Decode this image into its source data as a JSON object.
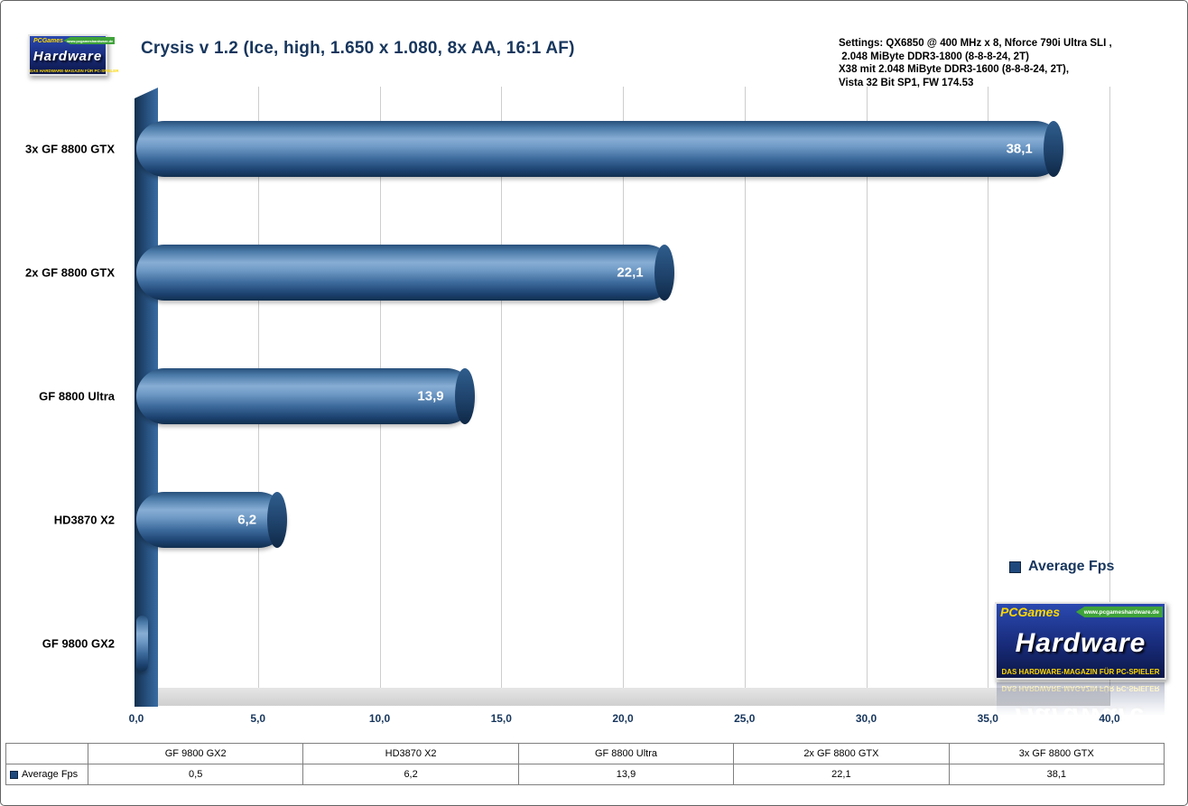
{
  "page": {
    "title": "Crysis v 1.2 (Ice, high, 1.650 x 1.080, 8x AA, 16:1 AF)",
    "settings_lines": [
      "Settings: QX6850 @ 400 MHz x 8, Nforce 790i Ultra SLI ,",
      " 2.048 MiByte DDR3-1800 (8-8-8-24, 2T)",
      "X38 mit 2.048 MiByte DDR3-1600 (8-8-8-24, 2T),",
      "Vista 32 Bit SP1, FW 174.53"
    ]
  },
  "logo": {
    "top_label": "PCGames",
    "url": "www.pcgameshardware.de",
    "name": "Hardware",
    "tagline": "DAS HARDWARE-MAGAZIN FÜR PC-SPIELER"
  },
  "legend": {
    "label": "Average Fps"
  },
  "chart_data": {
    "type": "bar",
    "orientation": "horizontal",
    "title": "Crysis v 1.2 (Ice, high, 1.650 x 1.080, 8x AA, 16:1 AF)",
    "series_name": "Average Fps",
    "categories": [
      "3x GF 8800 GTX",
      "2x GF 8800 GTX",
      "GF 8800 Ultra",
      "HD3870 X2",
      "GF 9800 GX2"
    ],
    "values": [
      38.1,
      22.1,
      13.9,
      6.2,
      0.5
    ],
    "value_labels": [
      "38,1",
      "22,1",
      "13,9",
      "6,2",
      ""
    ],
    "xlim": [
      0,
      40
    ],
    "tick_values": [
      0,
      5,
      10,
      15,
      20,
      25,
      30,
      35,
      40
    ],
    "x_ticks": [
      "0,0",
      "5,0",
      "10,0",
      "15,0",
      "20,0",
      "25,0",
      "30,0",
      "35,0",
      "40,0"
    ],
    "grid": true,
    "legend_position": "right",
    "bar_color": "#1F4E79"
  },
  "table": {
    "headers": [
      "GF 9800 GX2",
      "HD3870 X2",
      "GF 8800 Ultra",
      "2x GF 8800 GTX",
      "3x GF 8800 GTX"
    ],
    "row_label": "Average Fps",
    "values": [
      "0,5",
      "6,2",
      "13,9",
      "22,1",
      "38,1"
    ]
  }
}
